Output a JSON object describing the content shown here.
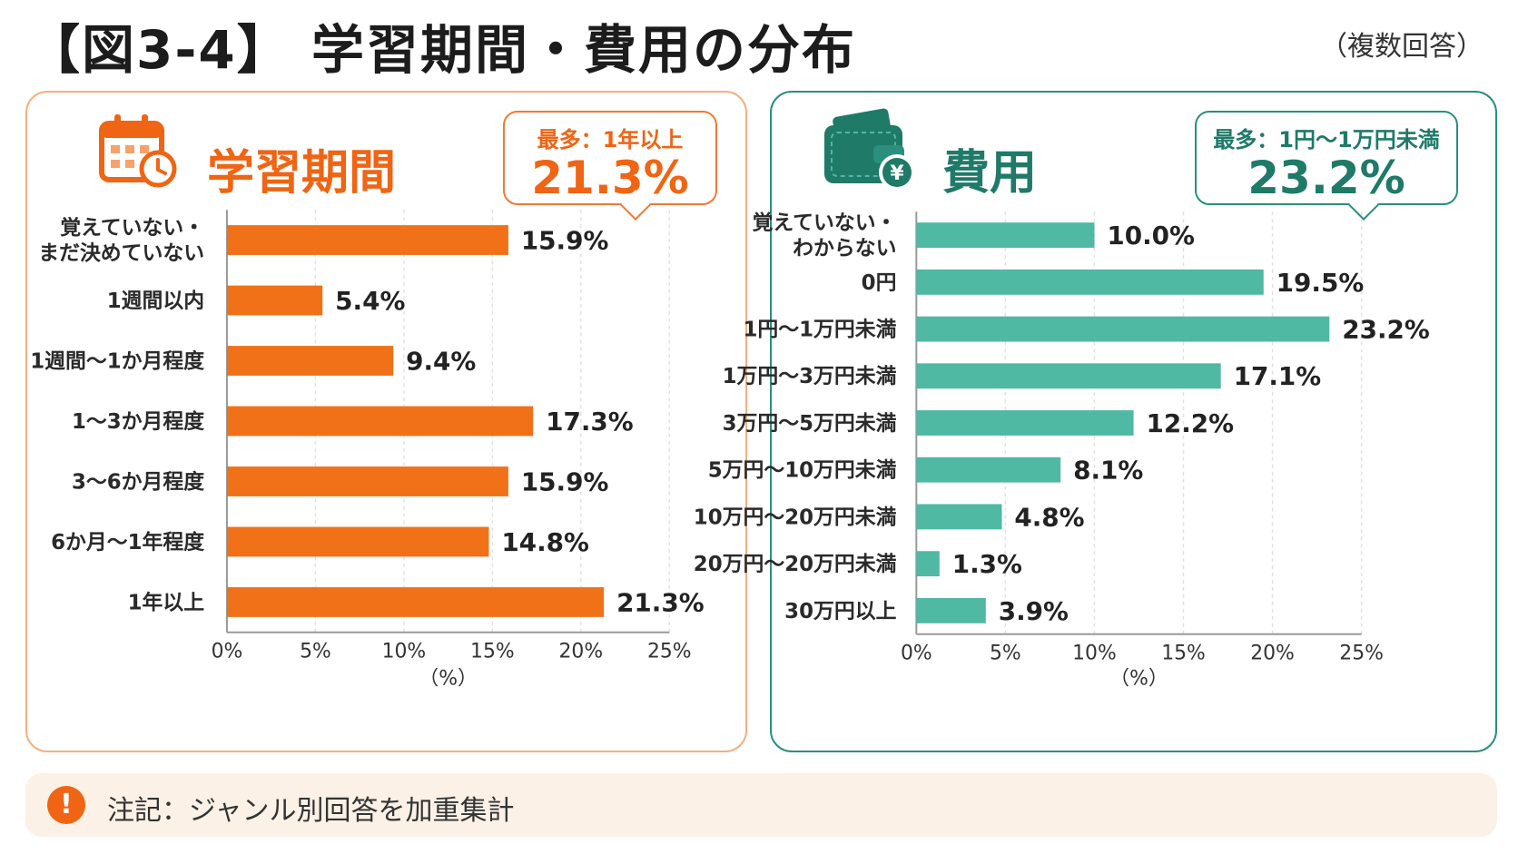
{
  "header": {
    "title": "【図3-4】 学習期間・費用の分布",
    "note": "（複数回答）"
  },
  "colors": {
    "orange": "#f07118",
    "teal": "#4fb9a3",
    "dark_teal": "#1f7a68"
  },
  "left_panel": {
    "title": "学習期間",
    "icon": "calendar-clock-icon",
    "callout_label": "最多：1年以上",
    "callout_value": "21.3%"
  },
  "right_panel": {
    "title": "費用",
    "icon": "wallet-yen-icon",
    "callout_label": "最多：1円〜1万円未満",
    "callout_value": "23.2%"
  },
  "chart_data": [
    {
      "type": "bar",
      "orientation": "horizontal",
      "categories": [
        [
          "覚えていない・",
          "まだ決めていない"
        ],
        [
          "1週間以内"
        ],
        [
          "1週間〜1か月程度"
        ],
        [
          "1〜3か月程度"
        ],
        [
          "3〜6か月程度"
        ],
        [
          "6か月〜1年程度"
        ],
        [
          "1年以上"
        ]
      ],
      "values": [
        15.9,
        5.4,
        9.4,
        17.3,
        15.9,
        14.8,
        21.3
      ],
      "value_labels": [
        "15.9%",
        "5.4%",
        "9.4%",
        "17.3%",
        "15.9%",
        "14.8%",
        "21.3%"
      ],
      "xlim": [
        0,
        25
      ],
      "xticks": [
        0,
        5,
        10,
        15,
        20,
        25
      ],
      "xtick_labels": [
        "0%",
        "5%",
        "10%",
        "15%",
        "20%",
        "25%"
      ],
      "xlabel": "（%）",
      "grid": true,
      "color": "#f07118"
    },
    {
      "type": "bar",
      "orientation": "horizontal",
      "categories": [
        [
          "覚えていない・",
          "わからない"
        ],
        [
          "0円"
        ],
        [
          "1円〜1万円未満"
        ],
        [
          "1万円〜3万円未満"
        ],
        [
          "3万円〜5万円未満"
        ],
        [
          "5万円〜10万円未満"
        ],
        [
          "10万円〜20万円未満"
        ],
        [
          "20万円〜20万円未満"
        ],
        [
          "30万円以上"
        ]
      ],
      "values": [
        10.0,
        19.5,
        23.2,
        17.1,
        12.2,
        8.1,
        4.8,
        1.3,
        3.9
      ],
      "value_labels": [
        "10.0%",
        "19.5%",
        "23.2%",
        "17.1%",
        "12.2%",
        "8.1%",
        "4.8%",
        "1.3%",
        "3.9%"
      ],
      "xlim": [
        0,
        25
      ],
      "xticks": [
        0,
        5,
        10,
        15,
        20,
        25
      ],
      "xtick_labels": [
        "0%",
        "5%",
        "10%",
        "15%",
        "20%",
        "25%"
      ],
      "xlabel": "（%）",
      "grid": true,
      "color": "#4fb9a3"
    }
  ],
  "footnote": {
    "icon": "exclamation-icon",
    "text": "注記：ジャンル別回答を加重集計"
  }
}
